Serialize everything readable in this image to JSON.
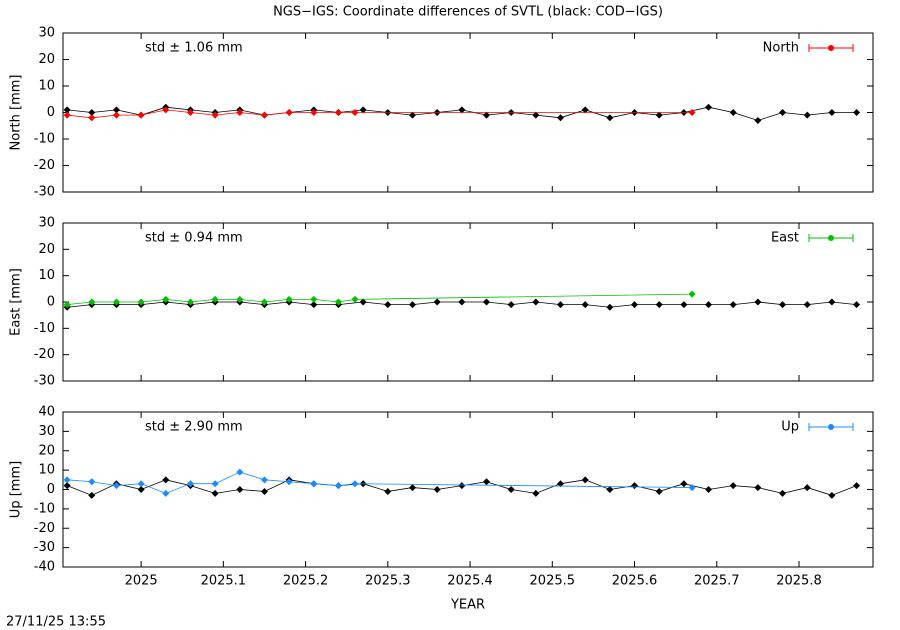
{
  "title": "NGS−IGS: Coordinate differences of SVTL (black: COD−IGS)",
  "timestamp": "27/11/25 13:55",
  "chart_data": [
    {
      "type": "line",
      "ylabel": "North [mm]",
      "annotation": "std ± 1.06 mm",
      "legend": "top right",
      "xlim": [
        2024.905,
        2025.89
      ],
      "xticks": [
        2025,
        2025.1,
        2025.2,
        2025.3,
        2025.4,
        2025.5,
        2025.6,
        2025.7,
        2025.8
      ],
      "ylim": [
        -30,
        30
      ],
      "yticks": [
        -30,
        -20,
        -10,
        0,
        10,
        20,
        30
      ],
      "series": [
        {
          "color": "#000000",
          "x": [
            2024.91,
            2024.94,
            2024.97,
            2025.0,
            2025.03,
            2025.06,
            2025.09,
            2025.12,
            2025.15,
            2025.18,
            2025.21,
            2025.24,
            2025.27,
            2025.3,
            2025.33,
            2025.36,
            2025.39,
            2025.42,
            2025.45,
            2025.48,
            2025.51,
            2025.54,
            2025.57,
            2025.6,
            2025.63,
            2025.66,
            2025.69,
            2025.72,
            2025.75,
            2025.78,
            2025.81,
            2025.84,
            2025.87
          ],
          "values": [
            1,
            0,
            1,
            -1,
            2,
            1,
            0,
            1,
            -1,
            0,
            1,
            0,
            1,
            0,
            -1,
            0,
            1,
            -1,
            0,
            -1,
            -2,
            1,
            -2,
            0,
            -1,
            0,
            2,
            0,
            -3,
            0,
            -1,
            0,
            0
          ]
        },
        {
          "name": "North",
          "color": "#ff0000",
          "x": [
            2024.91,
            2024.94,
            2024.97,
            2025.0,
            2025.03,
            2025.06,
            2025.09,
            2025.12,
            2025.15,
            2025.18,
            2025.21,
            2025.24,
            2025.26,
            2025.67
          ],
          "values": [
            -1,
            -2,
            -1,
            -1,
            1,
            0,
            -1,
            0,
            -1,
            0,
            0,
            0,
            0,
            0
          ]
        }
      ]
    },
    {
      "type": "line",
      "ylabel": "East [mm]",
      "annotation": "std ± 0.94 mm",
      "legend": "top right",
      "xlim": [
        2024.905,
        2025.89
      ],
      "xticks": [
        2025,
        2025.1,
        2025.2,
        2025.3,
        2025.4,
        2025.5,
        2025.6,
        2025.7,
        2025.8
      ],
      "ylim": [
        -30,
        30
      ],
      "yticks": [
        -30,
        -20,
        -10,
        0,
        10,
        20,
        30
      ],
      "series": [
        {
          "color": "#000000",
          "x": [
            2024.91,
            2024.94,
            2024.97,
            2025.0,
            2025.03,
            2025.06,
            2025.09,
            2025.12,
            2025.15,
            2025.18,
            2025.21,
            2025.24,
            2025.27,
            2025.3,
            2025.33,
            2025.36,
            2025.39,
            2025.42,
            2025.45,
            2025.48,
            2025.51,
            2025.54,
            2025.57,
            2025.6,
            2025.63,
            2025.66,
            2025.69,
            2025.72,
            2025.75,
            2025.78,
            2025.81,
            2025.84,
            2025.87
          ],
          "values": [
            -2,
            -1,
            -1,
            -1,
            0,
            -1,
            0,
            0,
            -1,
            0,
            -1,
            -1,
            0,
            -1,
            -1,
            0,
            0,
            0,
            -1,
            0,
            -1,
            -1,
            -2,
            -1,
            -1,
            -1,
            -1,
            -1,
            0,
            -1,
            -1,
            0,
            -1
          ]
        },
        {
          "name": "East",
          "color": "#00c000",
          "x": [
            2024.91,
            2024.94,
            2024.97,
            2025.0,
            2025.03,
            2025.06,
            2025.09,
            2025.12,
            2025.15,
            2025.18,
            2025.21,
            2025.24,
            2025.26,
            2025.67
          ],
          "values": [
            -1,
            0,
            0,
            0,
            1,
            0,
            1,
            1,
            0,
            1,
            1,
            0,
            1,
            3
          ]
        }
      ]
    },
    {
      "type": "line",
      "ylabel": "Up [mm]",
      "xlabel": "YEAR",
      "annotation": "std ± 2.90 mm",
      "legend": "top right",
      "xlim": [
        2024.905,
        2025.89
      ],
      "xticks": [
        2025,
        2025.1,
        2025.2,
        2025.3,
        2025.4,
        2025.5,
        2025.6,
        2025.7,
        2025.8
      ],
      "ylim": [
        -40,
        40
      ],
      "yticks": [
        -40,
        -30,
        -20,
        -10,
        0,
        10,
        20,
        30,
        40
      ],
      "series": [
        {
          "color": "#000000",
          "x": [
            2024.91,
            2024.94,
            2024.97,
            2025.0,
            2025.03,
            2025.06,
            2025.09,
            2025.12,
            2025.15,
            2025.18,
            2025.21,
            2025.24,
            2025.27,
            2025.3,
            2025.33,
            2025.36,
            2025.39,
            2025.42,
            2025.45,
            2025.48,
            2025.51,
            2025.54,
            2025.57,
            2025.6,
            2025.63,
            2025.66,
            2025.69,
            2025.72,
            2025.75,
            2025.78,
            2025.81,
            2025.84,
            2025.87
          ],
          "values": [
            2,
            -3,
            3,
            0,
            5,
            2,
            -2,
            0,
            -1,
            5,
            3,
            2,
            3,
            -1,
            1,
            0,
            2,
            4,
            0,
            -2,
            3,
            5,
            0,
            2,
            -1,
            3,
            0,
            2,
            1,
            -2,
            1,
            -3,
            2
          ]
        },
        {
          "name": "Up",
          "color": "#1a8cff",
          "x": [
            2024.91,
            2024.94,
            2024.97,
            2025.0,
            2025.03,
            2025.06,
            2025.09,
            2025.12,
            2025.15,
            2025.18,
            2025.21,
            2025.24,
            2025.26,
            2025.67
          ],
          "values": [
            5,
            4,
            2,
            3,
            -2,
            3,
            3,
            9,
            5,
            4,
            3,
            2,
            3,
            1
          ]
        }
      ]
    }
  ]
}
